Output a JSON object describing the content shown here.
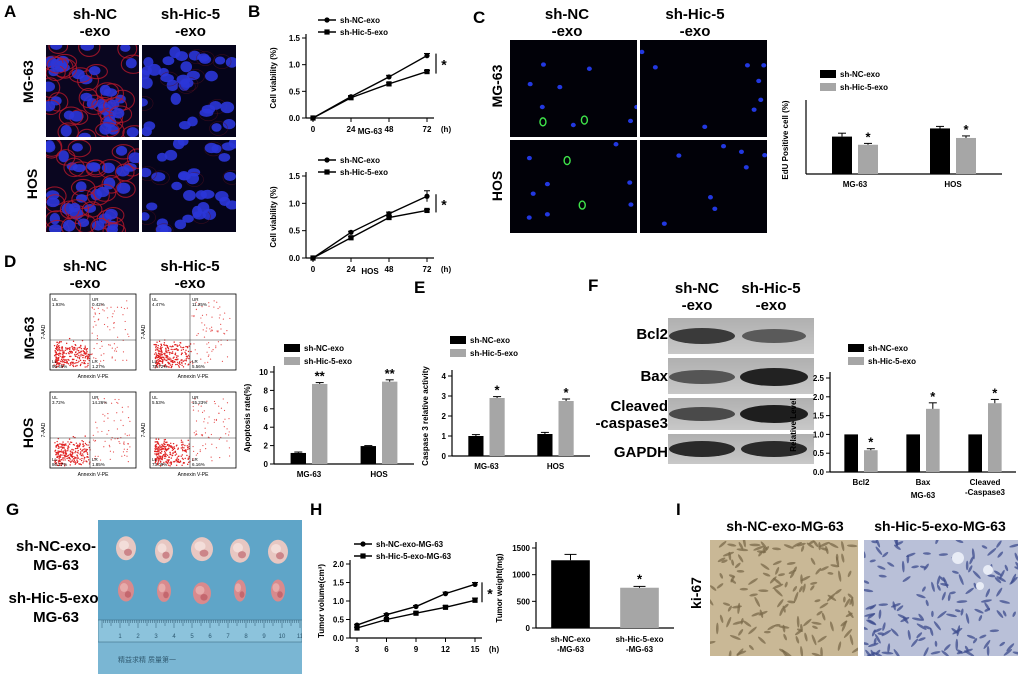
{
  "panels": {
    "A": {
      "letter": "A",
      "cols": [
        "sh-NC\n-exo",
        "sh-Hic-5\n-exo"
      ],
      "rows": [
        "MG-63",
        "HOS"
      ]
    },
    "C_img": {
      "letter": "C",
      "cols": [
        "sh-NC\n-exo",
        "sh-Hic-5\n-exo"
      ],
      "rows": [
        "MG-63",
        "HOS"
      ]
    },
    "D_img": {
      "letter": "D",
      "cols": [
        "sh-NC\n-exo",
        "sh-Hic-5\n-exo"
      ],
      "rows": [
        "MG-63",
        "HOS"
      ],
      "flow": {
        "xlabel": "Annexin V-PE",
        "ylabel": "7-AAD",
        "quadrants": [
          {
            "ul": "UL\n1.93%",
            "ur": "UR\n0.42%",
            "ll": "LL\n96.45%",
            "lr": "LR\n1.27%"
          },
          {
            "ul": "UL\n4.47%",
            "ur": "UR\n11.25%",
            "ll": "LL\n78.72%",
            "lr": "LR\n5.56%"
          },
          {
            "ul": "UL\n3.72%",
            "ur": "UR\n14.26%",
            "ll": "LL\n80.17%",
            "lr": "LR\n1.85%"
          },
          {
            "ul": "UL\n5.53%",
            "ur": "UR\n15.23%",
            "ll": "LL\n73.09%",
            "lr": "LR\n6.16%"
          }
        ]
      }
    },
    "F_img": {
      "letter": "F",
      "cols": [
        "sh-NC\n-exo",
        "sh-Hic-5\n-exo"
      ],
      "rows": [
        "Bcl2",
        "Bax",
        "Cleaved\n-caspase3",
        "GAPDH"
      ]
    },
    "G": {
      "letter": "G",
      "rows": [
        "sh-NC-exo-\nMG-63",
        "sh-Hic-5-exo-\nMG-63"
      ],
      "ruler_text": "精益求精   质量第一",
      "ruler_ticks": [
        "1",
        "2",
        "3",
        "4",
        "5",
        "6",
        "7",
        "8",
        "9",
        "10",
        "11"
      ]
    },
    "I": {
      "letter": "I",
      "cols": [
        "sh-NC-exo-MG-63",
        "sh-Hic-5-exo-MG-63"
      ],
      "row": "ki-67"
    }
  },
  "chart_data": [
    {
      "id": "B1",
      "letter": "B",
      "type": "line",
      "x": [
        0,
        24,
        48,
        72
      ],
      "xlabel": "MG-63",
      "xunit": "(h)",
      "ylabel": "Cell viability (%)",
      "ylim": [
        0,
        1.5
      ],
      "yticks": [
        "0.0",
        "0.5",
        "1.0",
        "1.5"
      ],
      "series": [
        {
          "name": "sh-NC-exo",
          "values": [
            0,
            0.4,
            0.77,
            1.17
          ],
          "err": [
            0,
            0.02,
            0.03,
            0.04
          ],
          "marker": "circle"
        },
        {
          "name": "sh-Hic-5-exo",
          "values": [
            0,
            0.38,
            0.64,
            0.87
          ],
          "err": [
            0,
            0.02,
            0.02,
            0.02
          ],
          "marker": "square"
        }
      ],
      "sig": "*"
    },
    {
      "id": "B2",
      "type": "line",
      "x": [
        0,
        24,
        48,
        72
      ],
      "xlabel": "HOS",
      "xunit": "(h)",
      "ylabel": "Cell viability (%)",
      "ylim": [
        0,
        1.5
      ],
      "yticks": [
        "0.0",
        "0.5",
        "1.0",
        "1.5"
      ],
      "series": [
        {
          "name": "sh-NC-exo",
          "values": [
            0,
            0.47,
            0.81,
            1.13
          ],
          "err": [
            0,
            0.02,
            0.03,
            0.1
          ],
          "marker": "circle"
        },
        {
          "name": "sh-Hic-5-exo",
          "values": [
            0,
            0.37,
            0.74,
            0.87
          ],
          "err": [
            0,
            0.02,
            0.03,
            0.02
          ],
          "marker": "square"
        }
      ],
      "sig": "*"
    },
    {
      "id": "C",
      "type": "bar",
      "categories": [
        "MG-63",
        "HOS"
      ],
      "ylabel": "EdU Positive cell  (%)",
      "ylim": [
        0,
        100
      ],
      "yticks": [],
      "series": [
        {
          "name": "sh-NC-exo",
          "color": "#000000",
          "values": [
            55,
            67
          ],
          "err": [
            5,
            3
          ]
        },
        {
          "name": "sh-Hic-5-exo",
          "color": "#a6a6a6",
          "values": [
            43,
            53
          ],
          "err": [
            2,
            3
          ]
        }
      ],
      "marks": [
        [
          "",
          "*"
        ],
        [
          "",
          "*"
        ]
      ]
    },
    {
      "id": "D",
      "type": "bar",
      "categories": [
        "MG-63",
        "HOS"
      ],
      "ylabel": "Apoptosis rate(%)",
      "ylim": [
        0,
        10
      ],
      "yticks": [
        "0",
        "2",
        "4",
        "6",
        "8",
        "10"
      ],
      "series": [
        {
          "name": "sh-NC-exo",
          "color": "#000000",
          "values": [
            1.2,
            1.95
          ],
          "err": [
            0.1,
            0.05
          ]
        },
        {
          "name": "sh-Hic-5-exo",
          "color": "#a6a6a6",
          "values": [
            8.7,
            8.95
          ],
          "err": [
            0.15,
            0.2
          ]
        }
      ],
      "marks": [
        [
          "",
          "**"
        ],
        [
          "",
          "**"
        ]
      ]
    },
    {
      "id": "E",
      "letter": "E",
      "type": "bar",
      "categories": [
        "MG-63",
        "HOS"
      ],
      "ylabel": "Caspase 3 relative activity",
      "ylim": [
        0,
        4
      ],
      "yticks": [
        "0",
        "1",
        "2",
        "3",
        "4"
      ],
      "series": [
        {
          "name": "sh-NC-exo",
          "color": "#000000",
          "values": [
            1.0,
            1.1
          ],
          "err": [
            0.07,
            0.08
          ]
        },
        {
          "name": "sh-Hic-5-exo",
          "color": "#a6a6a6",
          "values": [
            2.9,
            2.75
          ],
          "err": [
            0.07,
            0.1
          ]
        }
      ],
      "marks": [
        [
          "",
          "*"
        ],
        [
          "",
          "*"
        ]
      ]
    },
    {
      "id": "F",
      "type": "bar",
      "categories": [
        "Bcl2",
        "Bax",
        "Cleaved\n-Caspase3"
      ],
      "xlabel": "MG-63",
      "ylabel": "Relative Level",
      "ylim": [
        0,
        2.5
      ],
      "yticks": [
        "0.0",
        "0.5",
        "1.0",
        "1.5",
        "2.0",
        "2.5"
      ],
      "series": [
        {
          "name": "sh-NC-exo",
          "color": "#000000",
          "values": [
            1.0,
            1.0,
            1.0
          ],
          "err": [
            0,
            0,
            0
          ]
        },
        {
          "name": "sh-Hic-5-exo",
          "color": "#a6a6a6",
          "values": [
            0.58,
            1.68,
            1.83
          ],
          "err": [
            0.04,
            0.16,
            0.1
          ]
        }
      ],
      "marks": [
        [
          "",
          "*"
        ],
        [
          "",
          "*"
        ],
        [
          "",
          "*"
        ]
      ]
    },
    {
      "id": "H1",
      "letter": "H",
      "type": "line",
      "x": [
        3,
        6,
        9,
        12,
        15
      ],
      "xlabel": "",
      "xunit": "(h)",
      "ylabel": "Tumor volume(cm³)",
      "ylim": [
        0,
        2.0
      ],
      "yticks": [
        "0.0",
        "0.5",
        "1.0",
        "1.5",
        "2.0"
      ],
      "series": [
        {
          "name": "sh-NC-exo-MG-63",
          "values": [
            0.35,
            0.63,
            0.85,
            1.2,
            1.45
          ],
          "err": [
            0.02,
            0.03,
            0.03,
            0.04,
            0.05
          ],
          "marker": "circle"
        },
        {
          "name": "sh-Hic-5-exo-MG-63",
          "values": [
            0.27,
            0.5,
            0.67,
            0.83,
            1.02
          ],
          "err": [
            0.02,
            0.02,
            0.03,
            0.04,
            0.06
          ],
          "marker": "square"
        }
      ],
      "sig": "*"
    },
    {
      "id": "H2",
      "type": "bar",
      "categories": [
        "sh-NC-exo\n-MG-63",
        "sh-Hic-5-exo\n-MG-63"
      ],
      "ylabel": "Tumor weight(mg)",
      "ylim": [
        0,
        1500
      ],
      "yticks": [
        "0",
        "500",
        "1000",
        "1500"
      ],
      "series": [
        {
          "name": "weight",
          "colors": [
            "#000000",
            "#a6a6a6"
          ],
          "values": [
            1270,
            755
          ],
          "err": [
            110,
            25
          ]
        }
      ],
      "marks": [
        "",
        "*"
      ]
    }
  ]
}
